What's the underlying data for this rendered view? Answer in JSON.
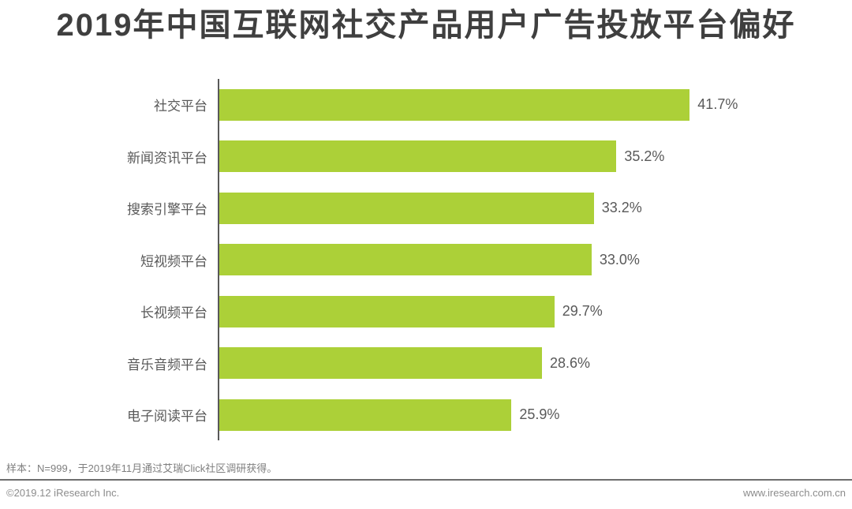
{
  "title": "2019年中国互联网社交产品用户广告投放平台偏好",
  "chart_data": {
    "type": "bar",
    "orientation": "horizontal",
    "title": "2019年中国互联网社交产品用户广告投放平台偏好",
    "categories": [
      "社交平台",
      "新闻资讯平台",
      "搜索引擎平台",
      "短视频平台",
      "长视频平台",
      "音乐音频平台",
      "电子阅读平台"
    ],
    "values": [
      41.7,
      35.2,
      33.2,
      33.0,
      29.7,
      28.6,
      25.9
    ],
    "value_labels": [
      "41.7%",
      "35.2%",
      "33.2%",
      "33.0%",
      "29.7%",
      "28.6%",
      "25.9%"
    ],
    "xlabel": "",
    "ylabel": "",
    "xlim": [
      0,
      56
    ],
    "grid": false,
    "legend": false,
    "bar_color": "#acd038"
  },
  "colors": {
    "bar": "#acd038",
    "title_text": "#3f3f3f",
    "label_text": "#595959",
    "axis_line": "#595959",
    "footer_text": "#7f7f7f",
    "footer_bar_text": "#8c8c8c",
    "divider": "#6e6e6e",
    "background": "#ffffff"
  },
  "footer": {
    "sample_note": "样本：N=999，于2019年11月通过艾瑞Click社区调研获得。",
    "copyright": "©2019.12 iResearch Inc.",
    "website": "www.iresearch.com.cn"
  }
}
